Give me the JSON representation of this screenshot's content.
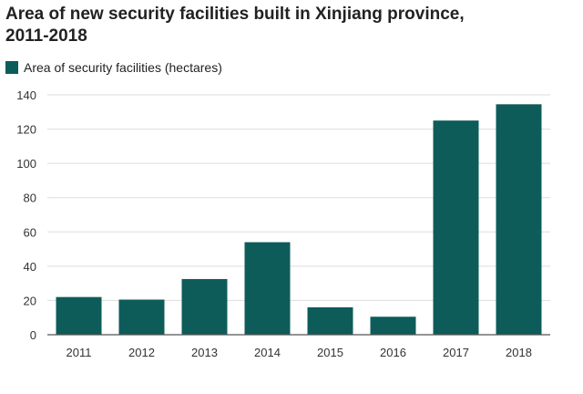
{
  "title_line1": "Area of new security facilities built in Xinjiang province,",
  "title_line2": "2011-2018",
  "chart_data": {
    "type": "bar",
    "title": "Area of new security facilities built in Xinjiang province, 2011-2018",
    "categories": [
      "2011",
      "2012",
      "2013",
      "2014",
      "2015",
      "2016",
      "2017",
      "2018"
    ],
    "series": [
      {
        "name": "Area of security facilities (hectares)",
        "values": [
          22,
          20.5,
          32.5,
          54,
          16,
          10.5,
          125,
          134.5
        ],
        "color": "#0d5c5a"
      }
    ],
    "ylim": [
      0,
      140
    ],
    "yticks": [
      0,
      20,
      40,
      60,
      80,
      100,
      120,
      140
    ],
    "grid": true,
    "legend": "top-left"
  }
}
